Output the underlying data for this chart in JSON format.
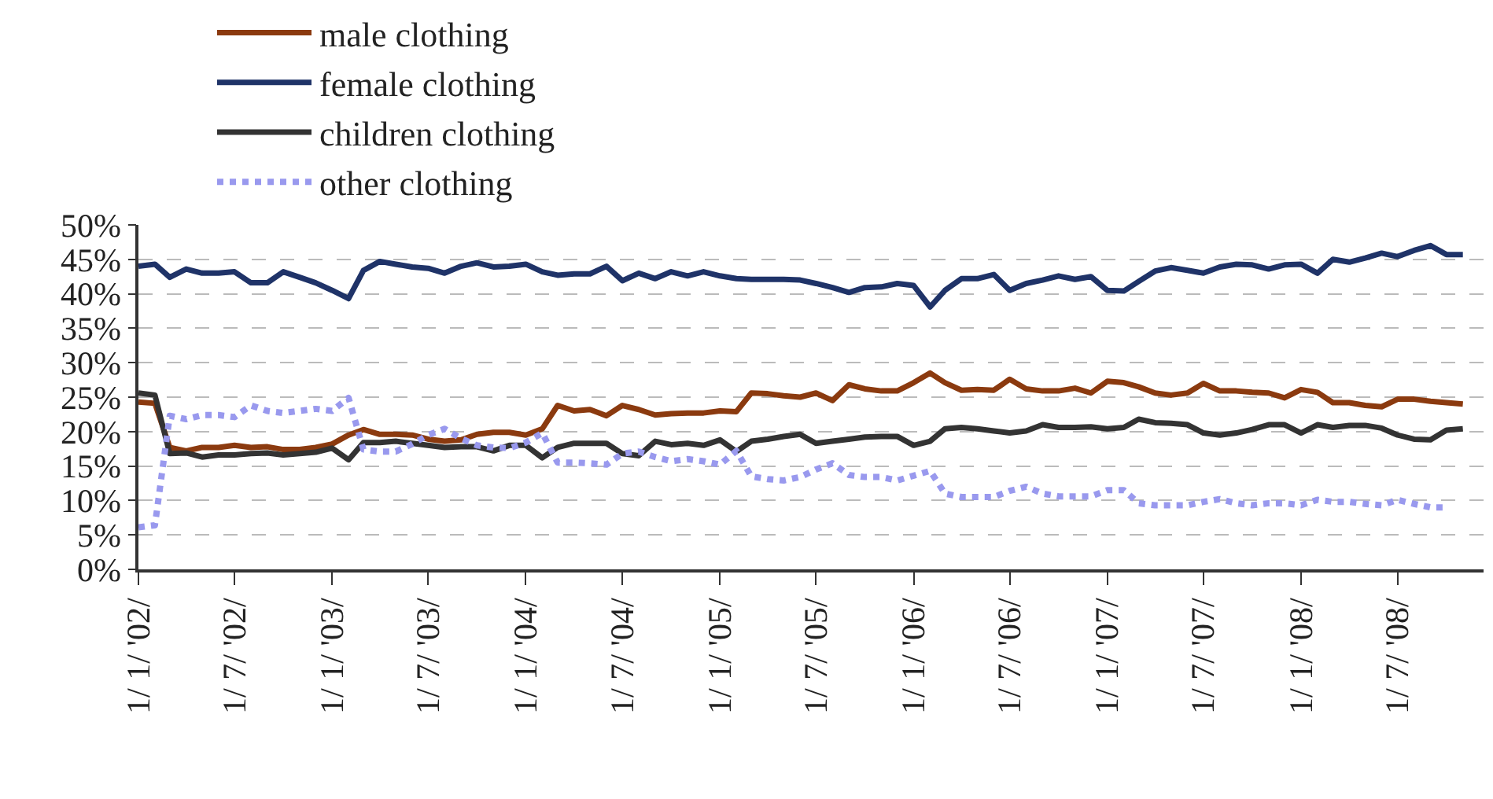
{
  "chart_data": {
    "type": "line",
    "x": [
      "2002-01",
      "2002-02",
      "2002-03",
      "2002-04",
      "2002-05",
      "2002-06",
      "2002-07",
      "2002-08",
      "2002-09",
      "2002-10",
      "2002-11",
      "2002-12",
      "2003-01",
      "2003-02",
      "2003-03",
      "2003-04",
      "2003-05",
      "2003-06",
      "2003-07",
      "2003-08",
      "2003-09",
      "2003-10",
      "2003-11",
      "2003-12",
      "2004-01",
      "2004-02",
      "2004-03",
      "2004-04",
      "2004-05",
      "2004-06",
      "2004-07",
      "2004-08",
      "2004-09",
      "2004-10",
      "2004-11",
      "2004-12",
      "2005-01",
      "2005-02",
      "2005-03",
      "2005-04",
      "2005-05",
      "2005-06",
      "2005-07",
      "2005-08",
      "2005-09",
      "2005-10",
      "2005-11",
      "2005-12",
      "2006-01",
      "2006-02",
      "2006-03",
      "2006-04",
      "2006-05",
      "2006-06",
      "2006-07",
      "2006-08",
      "2006-09",
      "2006-10",
      "2006-11",
      "2006-12",
      "2007-01",
      "2007-02",
      "2007-03",
      "2007-04",
      "2007-05",
      "2007-06",
      "2007-07",
      "2007-08",
      "2007-09",
      "2007-10",
      "2007-11",
      "2007-12",
      "2008-01",
      "2008-02",
      "2008-03",
      "2008-04",
      "2008-05",
      "2008-06",
      "2008-07",
      "2008-08",
      "2008-09",
      "2008-10",
      "2008-11"
    ],
    "series": [
      {
        "name": "male clothing",
        "color": "#8b3a0f",
        "line_style": "solid",
        "values": [
          24.3,
          24.1,
          17.7,
          17.2,
          17.7,
          17.7,
          18.0,
          17.7,
          17.8,
          17.4,
          17.4,
          17.7,
          18.2,
          19.5,
          20.3,
          19.6,
          19.6,
          19.5,
          18.9,
          18.6,
          18.8,
          19.6,
          19.9,
          19.9,
          19.5,
          20.4,
          23.8,
          23.0,
          23.2,
          22.3,
          23.8,
          23.2,
          22.4,
          22.6,
          22.7,
          22.7,
          23.0,
          22.9,
          25.6,
          25.5,
          25.2,
          25.0,
          25.6,
          24.5,
          26.8,
          26.2,
          25.9,
          25.9,
          27.1,
          28.5,
          27.1,
          26.0,
          26.1,
          26.0,
          27.6,
          26.2,
          25.9,
          25.9,
          26.3,
          25.6,
          27.3,
          27.1,
          26.5,
          25.6,
          25.3,
          25.6,
          27.0,
          25.9,
          25.9,
          25.7,
          25.6,
          24.9,
          26.1,
          25.7,
          24.2,
          24.2,
          23.8,
          23.6,
          24.7,
          24.7,
          24.4,
          24.2,
          24.0
        ]
      },
      {
        "name": "female clothing",
        "color": "#1f3368",
        "line_style": "solid",
        "values": [
          44.0,
          44.3,
          42.4,
          43.6,
          43.0,
          43.0,
          43.2,
          41.6,
          41.6,
          43.2,
          42.4,
          41.6,
          40.5,
          39.3,
          43.4,
          44.7,
          44.3,
          43.9,
          43.7,
          43.0,
          44.0,
          44.5,
          43.9,
          44.0,
          44.3,
          43.2,
          42.7,
          42.9,
          42.9,
          44.0,
          41.9,
          43.0,
          42.2,
          43.2,
          42.6,
          43.2,
          42.6,
          42.2,
          42.1,
          42.1,
          42.1,
          42.0,
          41.5,
          40.9,
          40.2,
          40.9,
          41.0,
          41.5,
          41.2,
          38.1,
          40.5,
          42.2,
          42.2,
          42.8,
          40.5,
          41.5,
          42.0,
          42.6,
          42.1,
          42.5,
          40.5,
          40.4,
          41.8,
          43.3,
          43.8,
          43.4,
          43.0,
          43.9,
          44.3,
          44.2,
          43.6,
          44.2,
          44.3,
          43.0,
          45.0,
          44.6,
          45.2,
          45.9,
          45.4,
          46.3,
          47.0,
          45.7,
          45.7
        ]
      },
      {
        "name": "children clothing",
        "color": "#333333",
        "line_style": "solid",
        "values": [
          25.6,
          25.3,
          16.8,
          16.9,
          16.3,
          16.6,
          16.6,
          16.8,
          16.9,
          16.6,
          16.8,
          17.0,
          17.6,
          15.9,
          18.4,
          18.4,
          18.6,
          18.3,
          18.0,
          17.7,
          17.8,
          17.8,
          17.2,
          18.0,
          18.0,
          16.2,
          17.7,
          18.3,
          18.3,
          18.3,
          16.8,
          16.5,
          18.6,
          18.1,
          18.3,
          18.0,
          18.8,
          17.1,
          18.6,
          18.9,
          19.3,
          19.6,
          18.3,
          18.6,
          18.9,
          19.2,
          19.3,
          19.3,
          18.0,
          18.6,
          20.4,
          20.6,
          20.4,
          20.1,
          19.8,
          20.1,
          21.0,
          20.6,
          20.6,
          20.7,
          20.4,
          20.6,
          21.8,
          21.3,
          21.2,
          21.0,
          19.8,
          19.5,
          19.8,
          20.3,
          21.0,
          21.0,
          19.8,
          21.0,
          20.6,
          20.9,
          20.9,
          20.5,
          19.5,
          18.9,
          18.8,
          20.2,
          20.4
        ]
      },
      {
        "name": "other clothing",
        "color": "#9999ee",
        "line_style": "dotted",
        "values": [
          6.1,
          6.4,
          22.3,
          21.8,
          22.4,
          22.4,
          22.1,
          23.8,
          23.0,
          22.7,
          23.0,
          23.3,
          23.0,
          24.9,
          17.4,
          17.1,
          17.1,
          18.2,
          19.5,
          20.4,
          19.0,
          18.0,
          17.7,
          17.6,
          18.4,
          19.8,
          15.5,
          15.5,
          15.4,
          15.2,
          16.8,
          17.1,
          16.3,
          15.7,
          16.0,
          15.7,
          15.2,
          17.2,
          13.5,
          13.1,
          12.9,
          13.4,
          14.5,
          15.4,
          13.7,
          13.4,
          13.4,
          12.9,
          13.6,
          14.3,
          11.0,
          10.5,
          10.5,
          10.5,
          11.4,
          12.0,
          11.0,
          10.6,
          10.6,
          10.6,
          11.5,
          11.5,
          9.6,
          9.3,
          9.3,
          9.3,
          9.8,
          10.2,
          9.6,
          9.3,
          9.6,
          9.6,
          9.3,
          10.1,
          9.8,
          9.8,
          9.5,
          9.3,
          10.1,
          9.5,
          9.0,
          9.0,
          null
        ]
      }
    ],
    "ylim": [
      0,
      50
    ],
    "yticks": [
      {
        "value": 0,
        "label": "0%"
      },
      {
        "value": 5,
        "label": "5%"
      },
      {
        "value": 10,
        "label": "10%"
      },
      {
        "value": 15,
        "label": "15%"
      },
      {
        "value": 20,
        "label": "20%"
      },
      {
        "value": 25,
        "label": "25%"
      },
      {
        "value": 30,
        "label": "30%"
      },
      {
        "value": 35,
        "label": "35%"
      },
      {
        "value": 40,
        "label": "40%"
      },
      {
        "value": 45,
        "label": "45%"
      },
      {
        "value": 50,
        "label": "50%"
      }
    ],
    "xlim": [
      "2002-01-01",
      "2008-12-10"
    ],
    "xticks": [
      {
        "value": "2002-01-01",
        "label": "1/ 1/ '02/"
      },
      {
        "value": "2002-07-01",
        "label": "1/ 7/ '02/"
      },
      {
        "value": "2003-01-01",
        "label": "1/ 1/ '03/"
      },
      {
        "value": "2003-07-01",
        "label": "1/ 7/ '03/"
      },
      {
        "value": "2004-01-01",
        "label": "1/ 1/ '04/"
      },
      {
        "value": "2004-07-01",
        "label": "1/ 7/ '04/"
      },
      {
        "value": "2005-01-01",
        "label": "1/ 1/ '05/"
      },
      {
        "value": "2005-07-01",
        "label": "1/ 7/ '05/"
      },
      {
        "value": "2006-01-01",
        "label": "1/ 1/ '06/"
      },
      {
        "value": "2006-07-01",
        "label": "1/ 7/ '06/"
      },
      {
        "value": "2007-01-01",
        "label": "1/ 1/ '07/"
      },
      {
        "value": "2007-07-01",
        "label": "1/ 7/ '07/"
      },
      {
        "value": "2008-01-01",
        "label": "1/ 1/ '08/"
      },
      {
        "value": "2008-07-01",
        "label": "1/ 7/ '08/"
      }
    ],
    "grid": "y",
    "legend": "top",
    "marker": "none"
  }
}
